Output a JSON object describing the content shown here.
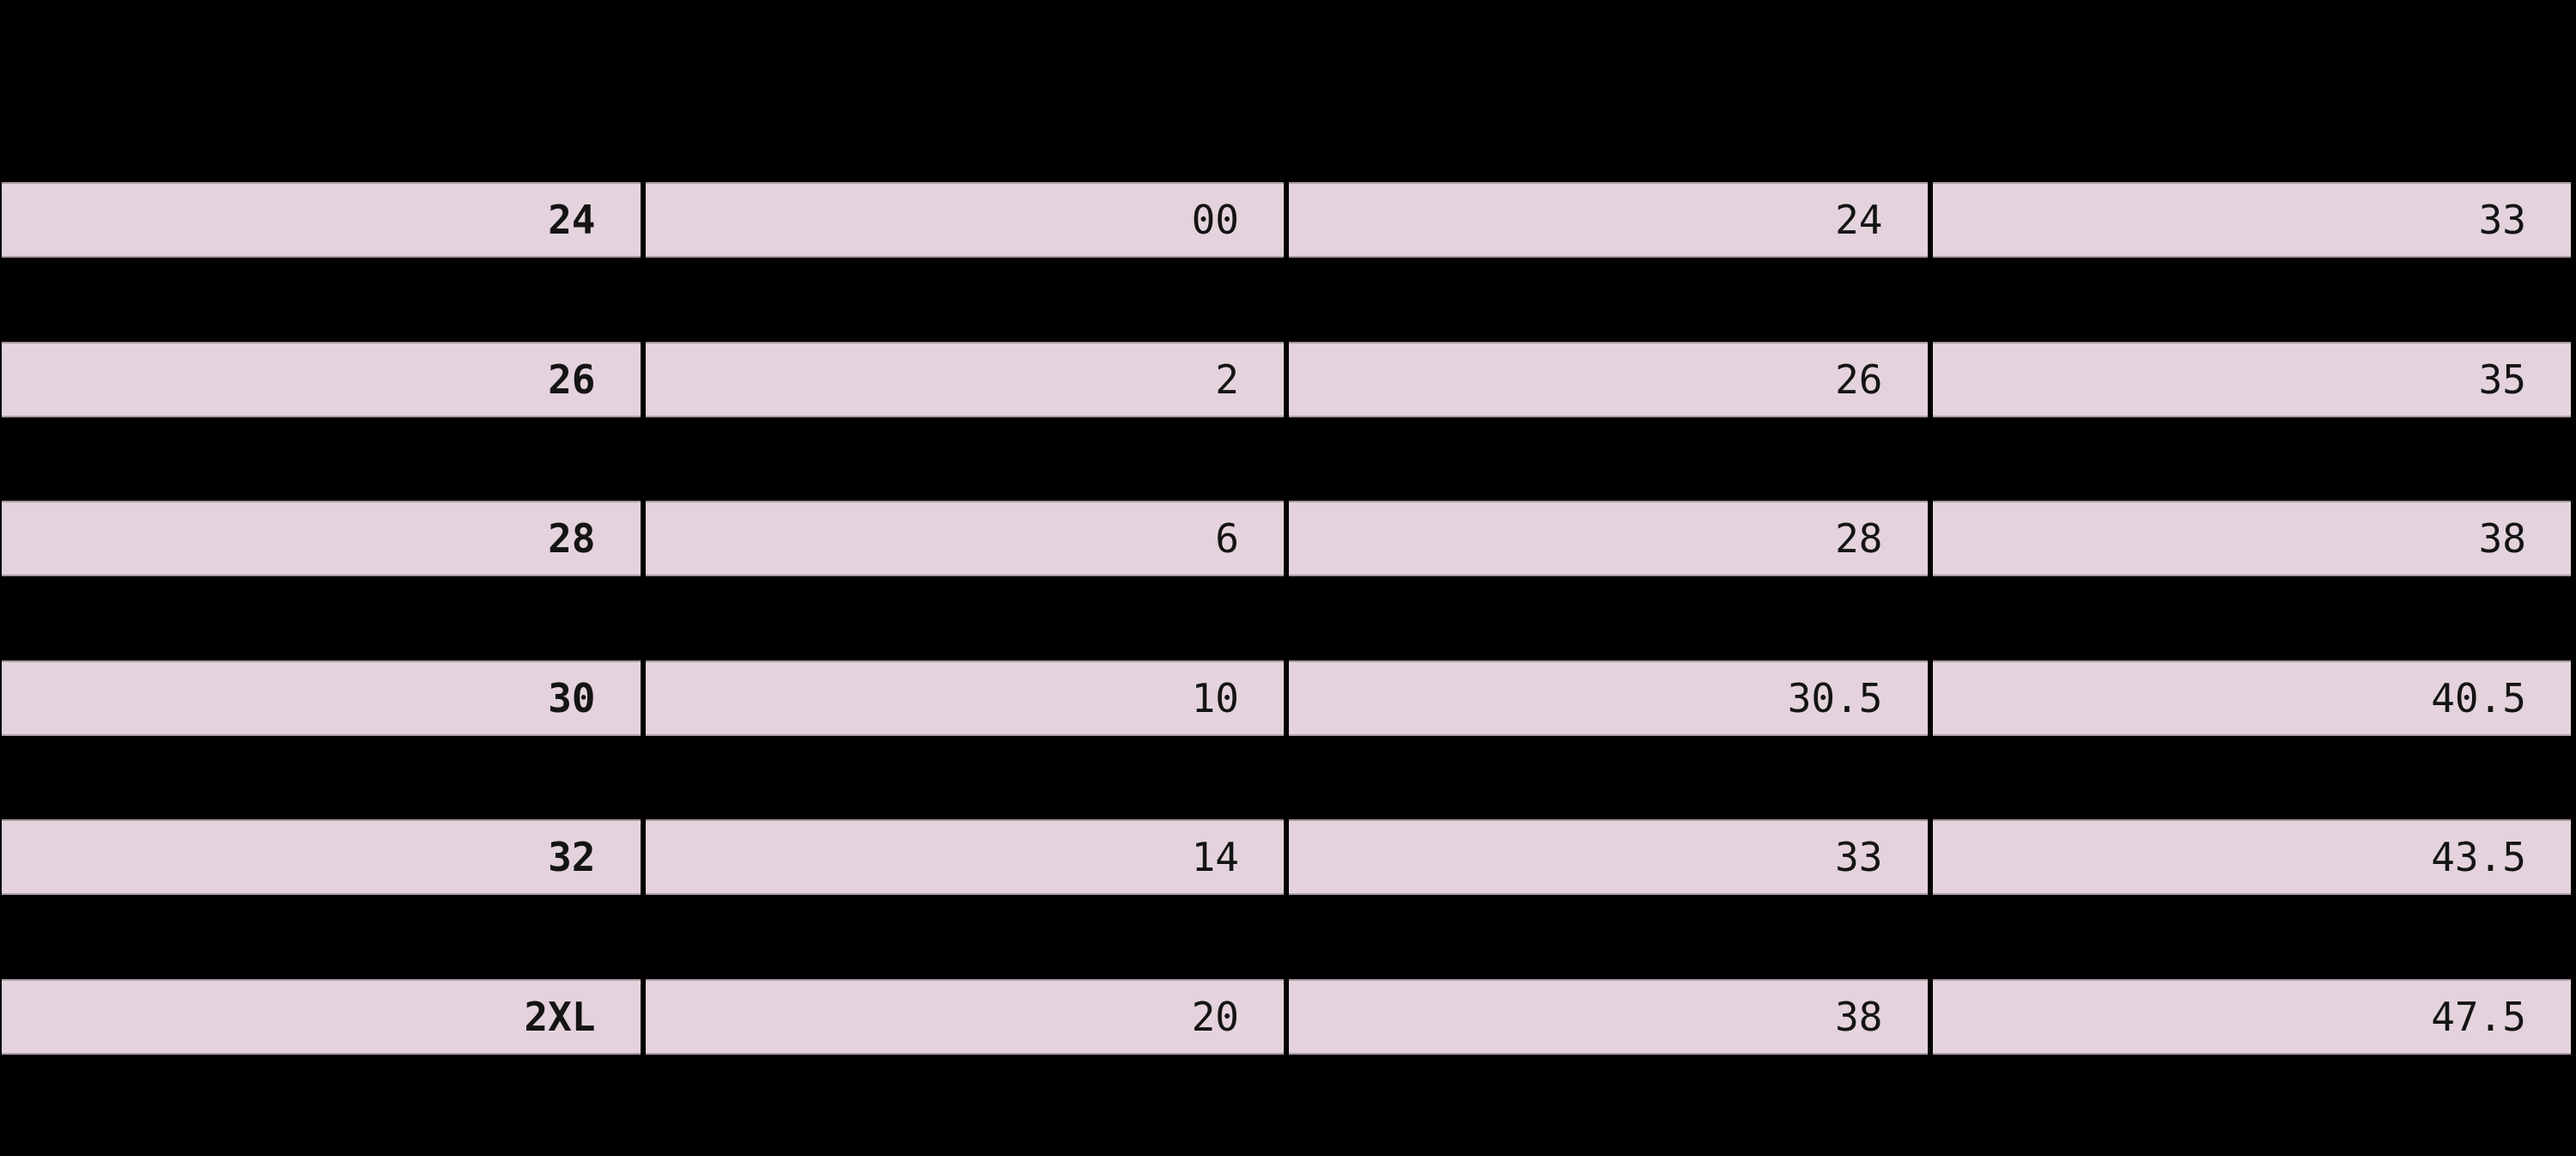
{
  "page": {
    "background_color": "#000000"
  },
  "size_chart": {
    "row_background_color": "#e4d3dc",
    "text_color": "#141414",
    "divider_color": "#000000",
    "rows": [
      {
        "size": "24",
        "c2": "00",
        "c3": "24",
        "c4": "33"
      },
      {
        "size": "26",
        "c2": "2",
        "c3": "26",
        "c4": "35"
      },
      {
        "size": "28",
        "c2": "6",
        "c3": "28",
        "c4": "38"
      },
      {
        "size": "30",
        "c2": "10",
        "c3": "30.5",
        "c4": "40.5"
      },
      {
        "size": "32",
        "c2": "14",
        "c3": "33",
        "c4": "43.5"
      },
      {
        "size": "2XL",
        "c2": "20",
        "c3": "38",
        "c4": "47.5"
      }
    ]
  },
  "chart_data": {
    "type": "table",
    "rows": [
      [
        "24",
        "00",
        "24",
        "33"
      ],
      [
        "26",
        "2",
        "26",
        "35"
      ],
      [
        "28",
        "6",
        "28",
        "38"
      ],
      [
        "30",
        "10",
        "30.5",
        "40.5"
      ],
      [
        "32",
        "14",
        "33",
        "43.5"
      ],
      [
        "2XL",
        "20",
        "38",
        "47.5"
      ]
    ],
    "layout": {
      "columns": 4,
      "visible_rows": 6,
      "row_fill": "#e4d3dc",
      "page_fill": "#000000",
      "text_align": "right",
      "first_column_bold": true
    }
  }
}
